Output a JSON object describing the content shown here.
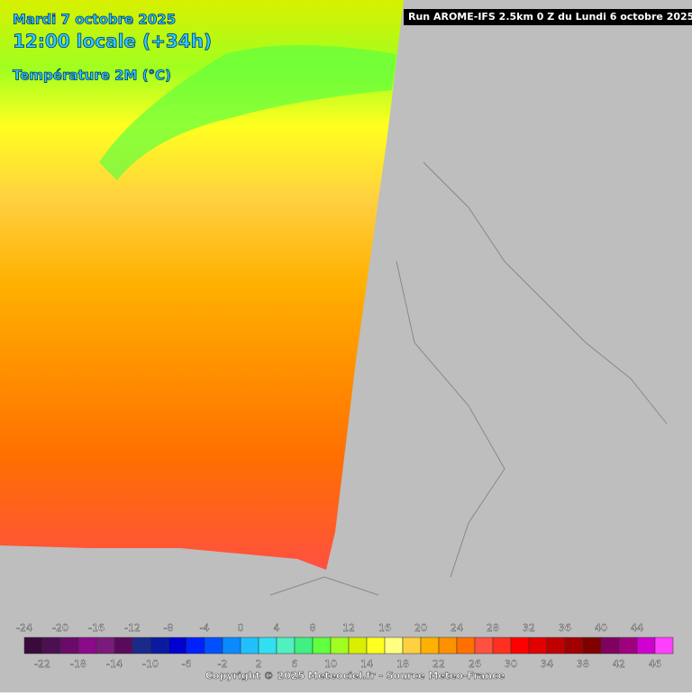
{
  "header": {
    "date": "Mardi 7 octobre 2025",
    "time": "12:00 locale (+34h)",
    "parameter": "Température 2M (°C)",
    "run": "Run AROME-IFS 2.5km 0 Z du Lundi 6 octobre 2025"
  },
  "legend": {
    "top_ticks": [
      -24,
      -20,
      -16,
      -12,
      -8,
      -4,
      0,
      4,
      8,
      12,
      16,
      20,
      24,
      28,
      32,
      36,
      40,
      44
    ],
    "bottom_ticks": [
      -22,
      -18,
      -14,
      -10,
      -6,
      -2,
      2,
      6,
      10,
      14,
      18,
      22,
      26,
      30,
      34,
      38,
      42,
      46
    ],
    "colors": [
      "#3a0a3a",
      "#4a1050",
      "#6a0a6a",
      "#8a0a8a",
      "#7a1a7a",
      "#5a0a5a",
      "#1a2a8a",
      "#0a1aa0",
      "#0000d0",
      "#0020ff",
      "#0050ff",
      "#0a8aff",
      "#20c0ff",
      "#30e0f0",
      "#50f0c0",
      "#40f080",
      "#60ff40",
      "#a0ff20",
      "#d8f000",
      "#ffff20",
      "#ffff80",
      "#ffd040",
      "#ffb000",
      "#ff9000",
      "#ff7000",
      "#ff5040",
      "#ff3020",
      "#ff0000",
      "#e00000",
      "#c00000",
      "#a00000",
      "#800000",
      "#800060",
      "#a00080",
      "#d000d0",
      "#ff40ff"
    ]
  },
  "footer": {
    "copyright": "Copyright © 2025 Meteociel.fr - Source Meteo-France"
  }
}
